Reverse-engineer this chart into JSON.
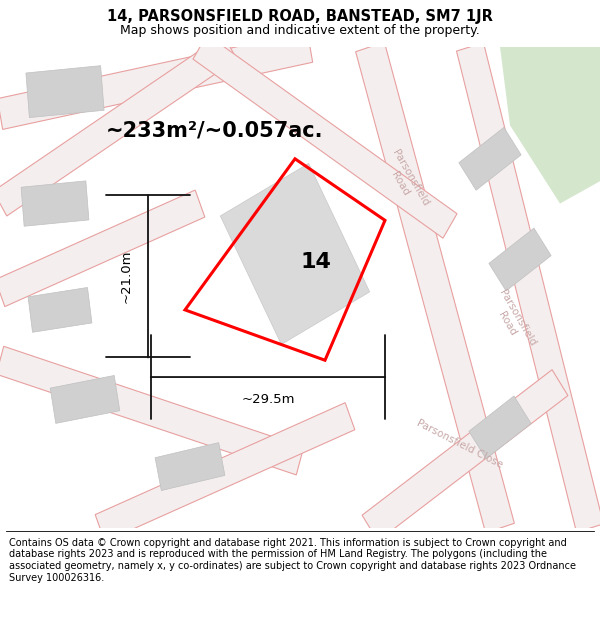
{
  "title_line1": "14, PARSONSFIELD ROAD, BANSTEAD, SM7 1JR",
  "title_line2": "Map shows position and indicative extent of the property.",
  "area_text": "~233m²/~0.057ac.",
  "width_label": "~29.5m",
  "height_label": "~21.0m",
  "property_number": "14",
  "footer_text": "Contains OS data © Crown copyright and database right 2021. This information is subject to Crown copyright and database rights 2023 and is reproduced with the permission of HM Land Registry. The polygons (including the associated geometry, namely x, y co-ordinates) are subject to Crown copyright and database rights 2023 Ordnance Survey 100026316.",
  "bg_color": "#ffffff",
  "map_bg": "#ede9e9",
  "road_color": "#e8a0a0",
  "road_fill": "#f5eeee",
  "property_outline_color": "#ff0000",
  "dim_line_color": "#111111",
  "street_label_color": "#c8a8a8",
  "building_fill": "#d0d0d0",
  "building_stroke": "#c0c0c0",
  "green_area": "#d4e6cc",
  "title_fontsize": 10.5,
  "subtitle_fontsize": 9,
  "area_fontsize": 15,
  "dim_fontsize": 9.5,
  "property_num_fontsize": 16,
  "footer_fontsize": 7
}
